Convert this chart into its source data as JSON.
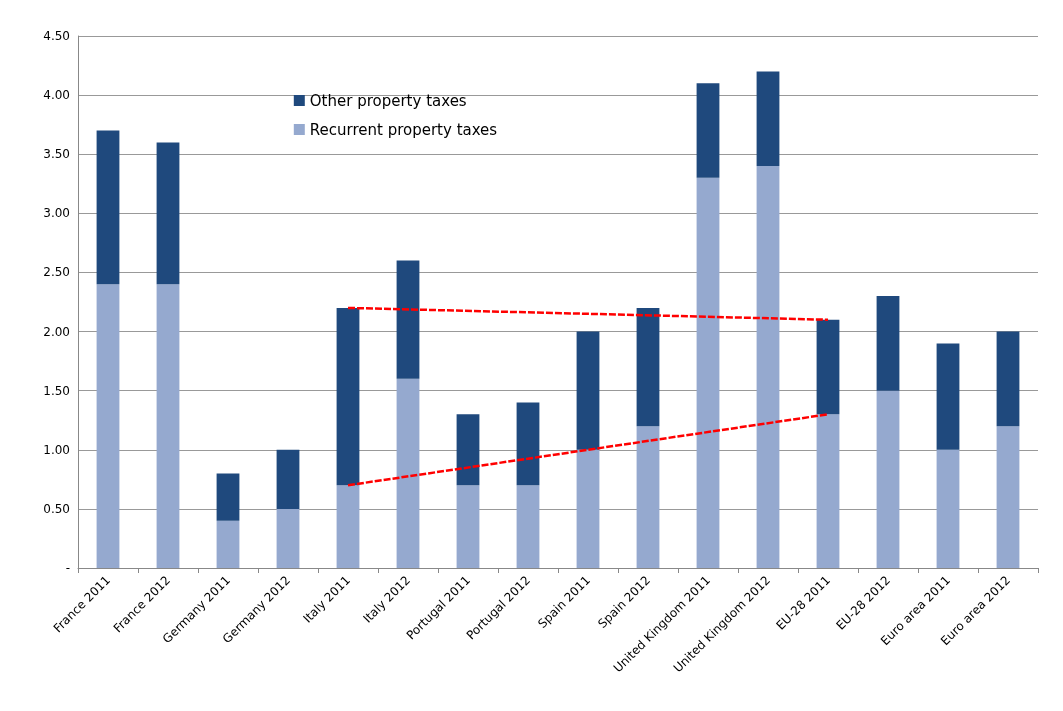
{
  "chart_data": {
    "type": "bar",
    "stacked": true,
    "categories": [
      "France 2011",
      "France 2012",
      "Germany 2011",
      "Germany 2012",
      "Italy 2011",
      "Italy 2012",
      "Portugal 2011",
      "Portugal 2012",
      "Spain 2011",
      "Spain 2012",
      "United Kingdom 2011",
      "United Kingdom 2012",
      "EU-28 2011",
      "EU-28 2012",
      "Euro area 2011",
      "Euro area 2012"
    ],
    "series": [
      {
        "name": "Recurrent property taxes",
        "color": "#95a9cf",
        "values": [
          2.4,
          2.4,
          0.4,
          0.5,
          0.7,
          1.6,
          0.7,
          0.7,
          1.0,
          1.2,
          3.3,
          3.4,
          1.3,
          1.5,
          1.0,
          1.2
        ]
      },
      {
        "name": "Other property taxes",
        "color": "#1f497d",
        "values": [
          1.3,
          1.2,
          0.4,
          0.5,
          1.5,
          1.0,
          0.6,
          0.7,
          1.0,
          1.0,
          0.8,
          0.8,
          0.8,
          0.8,
          0.9,
          0.8
        ]
      },
      {
        "type": "line",
        "color": "#ff0000",
        "line_style": "dashed",
        "marker": "none",
        "values": [
          null,
          null,
          null,
          null,
          2.2,
          null,
          null,
          null,
          null,
          null,
          null,
          null,
          2.1,
          null,
          null,
          null
        ]
      },
      {
        "type": "line",
        "color": "#ff0000",
        "line_style": "dashed",
        "marker": "none",
        "values": [
          null,
          null,
          null,
          null,
          0.7,
          null,
          null,
          null,
          null,
          null,
          null,
          null,
          1.3,
          null,
          null,
          null
        ]
      }
    ],
    "ylim": [
      0,
      4.5
    ],
    "yticks": [
      {
        "value": 0,
        "label": "-"
      },
      {
        "value": 0.5,
        "label": "0.50"
      },
      {
        "value": 1,
        "label": "1.00"
      },
      {
        "value": 1.5,
        "label": "1.50"
      },
      {
        "value": 2,
        "label": "2.00"
      },
      {
        "value": 2.5,
        "label": "2.50"
      },
      {
        "value": 3,
        "label": "3.00"
      },
      {
        "value": 3.5,
        "label": "3.50"
      },
      {
        "value": 4,
        "label": "4.00"
      },
      {
        "value": 4.5,
        "label": "4.50"
      }
    ],
    "grid": "y",
    "legend": "top"
  }
}
